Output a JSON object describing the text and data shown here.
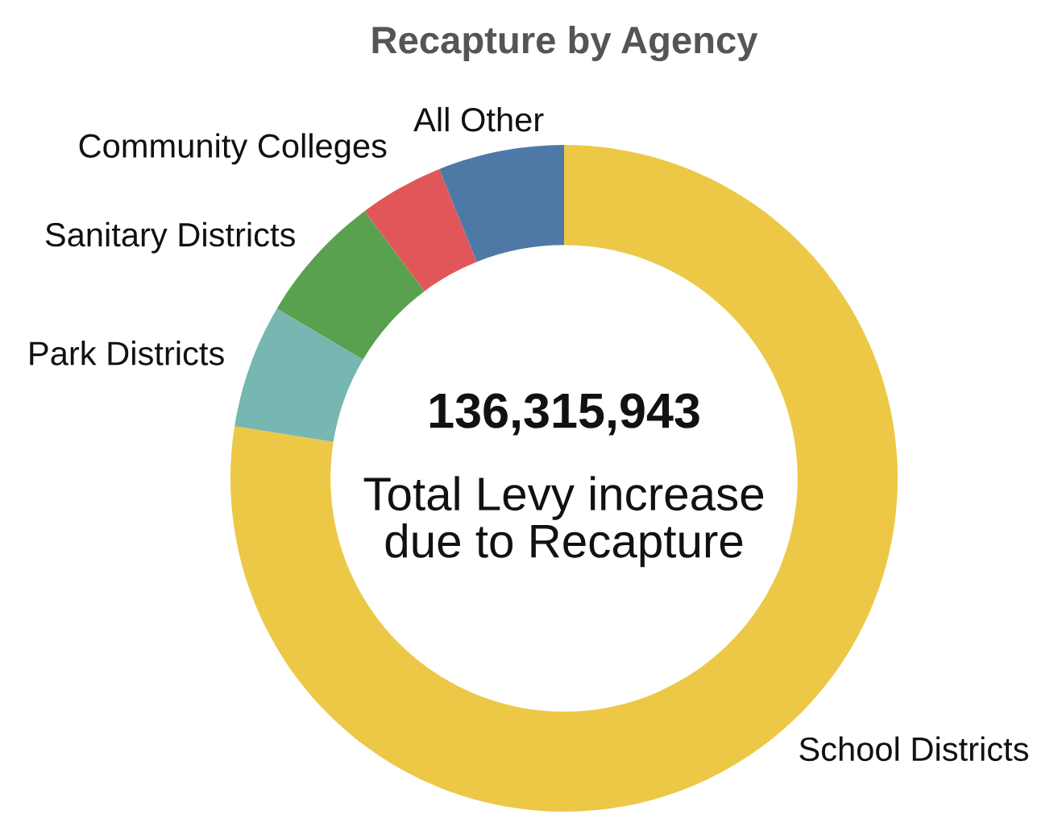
{
  "chart_data": {
    "type": "donut",
    "title": "Recapture by Agency",
    "categories": [
      "School Districts",
      "Park Districts",
      "Sanitary Districts",
      "Community Colleges",
      "All Other"
    ],
    "values": [
      77.5,
      6.0,
      6.3,
      4.1,
      6.1
    ],
    "colors": [
      "#ecc846",
      "#76b7b2",
      "#59a14f",
      "#e15759",
      "#4e79a7"
    ],
    "annotations": [
      "136,315,943",
      "Total Levy increase\ndue to Recapture"
    ],
    "legend": false
  }
}
